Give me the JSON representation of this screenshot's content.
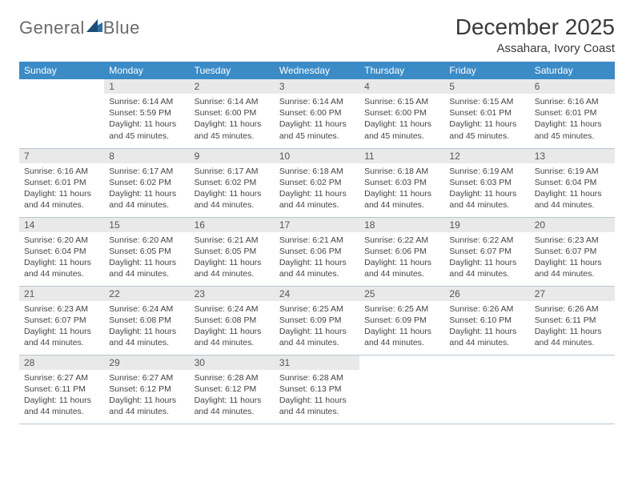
{
  "brand": {
    "part1": "General",
    "part2": "Blue",
    "accent_color": "#2f6fa8"
  },
  "title": "December 2025",
  "location": "Assahara, Ivory Coast",
  "colors": {
    "header_bg": "#3b8bc7",
    "header_text": "#ffffff",
    "daynum_bg": "#e9e9e9",
    "grid_line": "#b9c7d3",
    "text": "#3a3a3a"
  },
  "daysOfWeek": [
    "Sunday",
    "Monday",
    "Tuesday",
    "Wednesday",
    "Thursday",
    "Friday",
    "Saturday"
  ],
  "weeks": [
    [
      null,
      {
        "n": "1",
        "sunrise": "6:14 AM",
        "sunset": "5:59 PM",
        "daylight": "11 hours and 45 minutes."
      },
      {
        "n": "2",
        "sunrise": "6:14 AM",
        "sunset": "6:00 PM",
        "daylight": "11 hours and 45 minutes."
      },
      {
        "n": "3",
        "sunrise": "6:14 AM",
        "sunset": "6:00 PM",
        "daylight": "11 hours and 45 minutes."
      },
      {
        "n": "4",
        "sunrise": "6:15 AM",
        "sunset": "6:00 PM",
        "daylight": "11 hours and 45 minutes."
      },
      {
        "n": "5",
        "sunrise": "6:15 AM",
        "sunset": "6:01 PM",
        "daylight": "11 hours and 45 minutes."
      },
      {
        "n": "6",
        "sunrise": "6:16 AM",
        "sunset": "6:01 PM",
        "daylight": "11 hours and 45 minutes."
      }
    ],
    [
      {
        "n": "7",
        "sunrise": "6:16 AM",
        "sunset": "6:01 PM",
        "daylight": "11 hours and 44 minutes."
      },
      {
        "n": "8",
        "sunrise": "6:17 AM",
        "sunset": "6:02 PM",
        "daylight": "11 hours and 44 minutes."
      },
      {
        "n": "9",
        "sunrise": "6:17 AM",
        "sunset": "6:02 PM",
        "daylight": "11 hours and 44 minutes."
      },
      {
        "n": "10",
        "sunrise": "6:18 AM",
        "sunset": "6:02 PM",
        "daylight": "11 hours and 44 minutes."
      },
      {
        "n": "11",
        "sunrise": "6:18 AM",
        "sunset": "6:03 PM",
        "daylight": "11 hours and 44 minutes."
      },
      {
        "n": "12",
        "sunrise": "6:19 AM",
        "sunset": "6:03 PM",
        "daylight": "11 hours and 44 minutes."
      },
      {
        "n": "13",
        "sunrise": "6:19 AM",
        "sunset": "6:04 PM",
        "daylight": "11 hours and 44 minutes."
      }
    ],
    [
      {
        "n": "14",
        "sunrise": "6:20 AM",
        "sunset": "6:04 PM",
        "daylight": "11 hours and 44 minutes."
      },
      {
        "n": "15",
        "sunrise": "6:20 AM",
        "sunset": "6:05 PM",
        "daylight": "11 hours and 44 minutes."
      },
      {
        "n": "16",
        "sunrise": "6:21 AM",
        "sunset": "6:05 PM",
        "daylight": "11 hours and 44 minutes."
      },
      {
        "n": "17",
        "sunrise": "6:21 AM",
        "sunset": "6:06 PM",
        "daylight": "11 hours and 44 minutes."
      },
      {
        "n": "18",
        "sunrise": "6:22 AM",
        "sunset": "6:06 PM",
        "daylight": "11 hours and 44 minutes."
      },
      {
        "n": "19",
        "sunrise": "6:22 AM",
        "sunset": "6:07 PM",
        "daylight": "11 hours and 44 minutes."
      },
      {
        "n": "20",
        "sunrise": "6:23 AM",
        "sunset": "6:07 PM",
        "daylight": "11 hours and 44 minutes."
      }
    ],
    [
      {
        "n": "21",
        "sunrise": "6:23 AM",
        "sunset": "6:07 PM",
        "daylight": "11 hours and 44 minutes."
      },
      {
        "n": "22",
        "sunrise": "6:24 AM",
        "sunset": "6:08 PM",
        "daylight": "11 hours and 44 minutes."
      },
      {
        "n": "23",
        "sunrise": "6:24 AM",
        "sunset": "6:08 PM",
        "daylight": "11 hours and 44 minutes."
      },
      {
        "n": "24",
        "sunrise": "6:25 AM",
        "sunset": "6:09 PM",
        "daylight": "11 hours and 44 minutes."
      },
      {
        "n": "25",
        "sunrise": "6:25 AM",
        "sunset": "6:09 PM",
        "daylight": "11 hours and 44 minutes."
      },
      {
        "n": "26",
        "sunrise": "6:26 AM",
        "sunset": "6:10 PM",
        "daylight": "11 hours and 44 minutes."
      },
      {
        "n": "27",
        "sunrise": "6:26 AM",
        "sunset": "6:11 PM",
        "daylight": "11 hours and 44 minutes."
      }
    ],
    [
      {
        "n": "28",
        "sunrise": "6:27 AM",
        "sunset": "6:11 PM",
        "daylight": "11 hours and 44 minutes."
      },
      {
        "n": "29",
        "sunrise": "6:27 AM",
        "sunset": "6:12 PM",
        "daylight": "11 hours and 44 minutes."
      },
      {
        "n": "30",
        "sunrise": "6:28 AM",
        "sunset": "6:12 PM",
        "daylight": "11 hours and 44 minutes."
      },
      {
        "n": "31",
        "sunrise": "6:28 AM",
        "sunset": "6:13 PM",
        "daylight": "11 hours and 44 minutes."
      },
      null,
      null,
      null
    ]
  ],
  "labels": {
    "sunrise": "Sunrise: ",
    "sunset": "Sunset: ",
    "daylight": "Daylight: "
  }
}
